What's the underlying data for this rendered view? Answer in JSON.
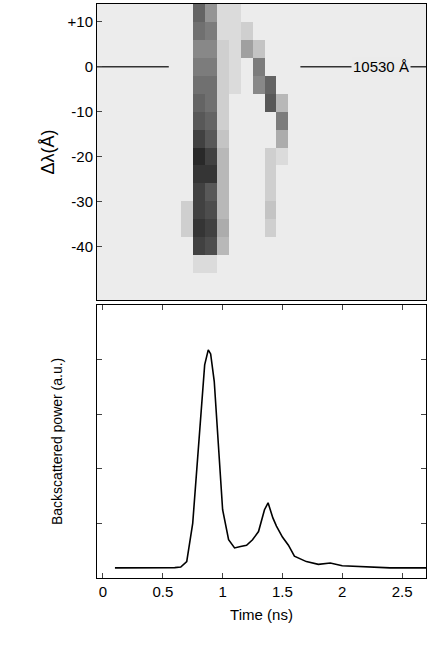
{
  "chart_data": [
    {
      "type": "heatmap",
      "y_label": "Δλ(Å)",
      "x": [
        0.0,
        0.1,
        0.2,
        0.3,
        0.4,
        0.5,
        0.6,
        0.7,
        0.8,
        0.9,
        1.0,
        1.1,
        1.2,
        1.3,
        1.4,
        1.5,
        1.6,
        1.7,
        1.8,
        1.9,
        2.0,
        2.1,
        2.2,
        2.3,
        2.4,
        2.5,
        2.6,
        2.7
      ],
      "y": [
        -52,
        -48,
        -44,
        -40,
        -36,
        -32,
        -28,
        -24,
        -20,
        -16,
        -12,
        -8,
        -4,
        0,
        4,
        8,
        12
      ],
      "z": [
        [
          0.08,
          0.08,
          0.08,
          0.08,
          0.08,
          0.08,
          0.08,
          0.08,
          0.08,
          0.08,
          0.08,
          0.08,
          0.08,
          0.08,
          0.08,
          0.08,
          0.08,
          0.08,
          0.08,
          0.08,
          0.08,
          0.08,
          0.08,
          0.08,
          0.08,
          0.08,
          0.08,
          0.08
        ],
        [
          0.08,
          0.08,
          0.08,
          0.08,
          0.08,
          0.08,
          0.08,
          0.08,
          0.08,
          0.08,
          0.08,
          0.08,
          0.08,
          0.08,
          0.08,
          0.08,
          0.08,
          0.08,
          0.08,
          0.08,
          0.08,
          0.08,
          0.08,
          0.08,
          0.08,
          0.08,
          0.08,
          0.08
        ],
        [
          0.08,
          0.08,
          0.08,
          0.08,
          0.08,
          0.08,
          0.08,
          0.08,
          0.15,
          0.15,
          0.08,
          0.08,
          0.08,
          0.08,
          0.08,
          0.08,
          0.08,
          0.08,
          0.08,
          0.08,
          0.08,
          0.08,
          0.08,
          0.08,
          0.08,
          0.08,
          0.08,
          0.08
        ],
        [
          0.08,
          0.08,
          0.08,
          0.08,
          0.08,
          0.08,
          0.08,
          0.08,
          0.8,
          0.75,
          0.3,
          0.08,
          0.08,
          0.08,
          0.08,
          0.08,
          0.08,
          0.08,
          0.08,
          0.08,
          0.08,
          0.08,
          0.08,
          0.08,
          0.08,
          0.08,
          0.08,
          0.08
        ],
        [
          0.08,
          0.08,
          0.08,
          0.08,
          0.08,
          0.08,
          0.08,
          0.2,
          0.85,
          0.8,
          0.35,
          0.08,
          0.08,
          0.08,
          0.2,
          0.08,
          0.08,
          0.08,
          0.08,
          0.08,
          0.08,
          0.08,
          0.08,
          0.08,
          0.08,
          0.08,
          0.08,
          0.08
        ],
        [
          0.08,
          0.08,
          0.08,
          0.08,
          0.08,
          0.08,
          0.08,
          0.2,
          0.8,
          0.75,
          0.3,
          0.08,
          0.08,
          0.08,
          0.25,
          0.08,
          0.08,
          0.08,
          0.08,
          0.08,
          0.08,
          0.08,
          0.08,
          0.08,
          0.08,
          0.08,
          0.08,
          0.08
        ],
        [
          0.08,
          0.08,
          0.08,
          0.08,
          0.08,
          0.08,
          0.08,
          0.08,
          0.8,
          0.7,
          0.3,
          0.08,
          0.08,
          0.08,
          0.2,
          0.08,
          0.08,
          0.08,
          0.08,
          0.08,
          0.08,
          0.08,
          0.08,
          0.08,
          0.08,
          0.08,
          0.08,
          0.08
        ],
        [
          0.08,
          0.08,
          0.08,
          0.08,
          0.08,
          0.08,
          0.08,
          0.08,
          0.85,
          0.85,
          0.3,
          0.08,
          0.08,
          0.08,
          0.2,
          0.08,
          0.08,
          0.08,
          0.08,
          0.08,
          0.08,
          0.08,
          0.08,
          0.08,
          0.08,
          0.08,
          0.08,
          0.08
        ],
        [
          0.08,
          0.08,
          0.08,
          0.08,
          0.08,
          0.08,
          0.08,
          0.08,
          0.9,
          0.8,
          0.3,
          0.08,
          0.08,
          0.08,
          0.2,
          0.15,
          0.08,
          0.08,
          0.08,
          0.08,
          0.08,
          0.08,
          0.08,
          0.08,
          0.08,
          0.08,
          0.08,
          0.08
        ],
        [
          0.08,
          0.08,
          0.08,
          0.08,
          0.08,
          0.08,
          0.08,
          0.08,
          0.8,
          0.7,
          0.25,
          0.08,
          0.08,
          0.08,
          0.08,
          0.35,
          0.08,
          0.08,
          0.08,
          0.08,
          0.08,
          0.08,
          0.08,
          0.08,
          0.08,
          0.08,
          0.08,
          0.08
        ],
        [
          0.08,
          0.08,
          0.08,
          0.08,
          0.08,
          0.08,
          0.08,
          0.08,
          0.7,
          0.65,
          0.2,
          0.08,
          0.08,
          0.08,
          0.08,
          0.55,
          0.08,
          0.08,
          0.08,
          0.08,
          0.08,
          0.08,
          0.08,
          0.08,
          0.08,
          0.08,
          0.08,
          0.08
        ],
        [
          0.08,
          0.08,
          0.08,
          0.08,
          0.08,
          0.08,
          0.08,
          0.08,
          0.65,
          0.6,
          0.2,
          0.08,
          0.08,
          0.08,
          0.7,
          0.3,
          0.08,
          0.08,
          0.08,
          0.08,
          0.08,
          0.08,
          0.08,
          0.08,
          0.08,
          0.08,
          0.08,
          0.08
        ],
        [
          0.08,
          0.08,
          0.08,
          0.08,
          0.08,
          0.08,
          0.08,
          0.08,
          0.6,
          0.6,
          0.2,
          0.15,
          0.08,
          0.5,
          0.65,
          0.08,
          0.08,
          0.08,
          0.08,
          0.08,
          0.08,
          0.08,
          0.08,
          0.08,
          0.08,
          0.08,
          0.08,
          0.08
        ],
        [
          0.08,
          0.08,
          0.08,
          0.08,
          0.08,
          0.08,
          0.08,
          0.08,
          0.55,
          0.55,
          0.2,
          0.15,
          0.08,
          0.55,
          0.08,
          0.08,
          0.08,
          0.08,
          0.08,
          0.08,
          0.08,
          0.08,
          0.08,
          0.08,
          0.08,
          0.08,
          0.08,
          0.08
        ],
        [
          0.08,
          0.08,
          0.08,
          0.08,
          0.08,
          0.08,
          0.08,
          0.08,
          0.5,
          0.5,
          0.2,
          0.15,
          0.4,
          0.25,
          0.08,
          0.08,
          0.08,
          0.08,
          0.08,
          0.08,
          0.08,
          0.08,
          0.08,
          0.08,
          0.08,
          0.08,
          0.08,
          0.08
        ],
        [
          0.08,
          0.08,
          0.08,
          0.08,
          0.08,
          0.08,
          0.08,
          0.08,
          0.6,
          0.55,
          0.15,
          0.15,
          0.2,
          0.08,
          0.08,
          0.08,
          0.08,
          0.08,
          0.08,
          0.08,
          0.08,
          0.08,
          0.08,
          0.08,
          0.08,
          0.08,
          0.08,
          0.08
        ],
        [
          0.08,
          0.08,
          0.08,
          0.08,
          0.08,
          0.08,
          0.08,
          0.08,
          0.65,
          0.45,
          0.15,
          0.15,
          0.08,
          0.08,
          0.08,
          0.08,
          0.08,
          0.08,
          0.08,
          0.08,
          0.08,
          0.08,
          0.08,
          0.08,
          0.08,
          0.08,
          0.08,
          0.08
        ]
      ],
      "zlim": [
        0,
        1
      ],
      "xlim": [
        -0.05,
        2.7
      ],
      "ylim": [
        -52,
        14
      ],
      "yticks": [
        {
          "value": 10,
          "label": "+10"
        },
        0,
        -10,
        -20,
        -30,
        -40
      ],
      "tick_labels": "y",
      "reference_line": {
        "y": 0,
        "segments": [
          [
            -0.05,
            0.55
          ],
          [
            1.65,
            2.7
          ]
        ]
      },
      "annotations": [
        {
          "text": "10530 Å",
          "x": 2.32,
          "y": 0
        }
      ]
    },
    {
      "type": "line",
      "x_label": "Time (ns)",
      "y_label": "Backscattered power (a.u.)",
      "x": [
        0.1,
        0.3,
        0.5,
        0.6,
        0.65,
        0.7,
        0.75,
        0.8,
        0.85,
        0.88,
        0.9,
        0.93,
        0.97,
        1.0,
        1.05,
        1.1,
        1.15,
        1.2,
        1.25,
        1.3,
        1.35,
        1.38,
        1.42,
        1.45,
        1.5,
        1.55,
        1.6,
        1.7,
        1.8,
        1.9,
        2.0,
        2.2,
        2.4,
        2.6,
        2.7
      ],
      "values": [
        0.037,
        0.037,
        0.037,
        0.038,
        0.04,
        0.06,
        0.2,
        0.5,
        0.78,
        0.835,
        0.82,
        0.72,
        0.45,
        0.25,
        0.14,
        0.11,
        0.115,
        0.12,
        0.14,
        0.17,
        0.25,
        0.275,
        0.22,
        0.19,
        0.15,
        0.12,
        0.08,
        0.06,
        0.05,
        0.055,
        0.045,
        0.04,
        0.037,
        0.037,
        0.037
      ],
      "color": "#000000",
      "xlim": [
        -0.05,
        2.7
      ],
      "ylim": [
        0,
        1
      ],
      "xticks": [
        0,
        0.5,
        1,
        1.5,
        2,
        2.5
      ],
      "yticks": [
        0,
        0.2,
        0.4,
        0.6,
        0.8,
        1
      ],
      "tick_labels": "x",
      "grid": false
    }
  ]
}
